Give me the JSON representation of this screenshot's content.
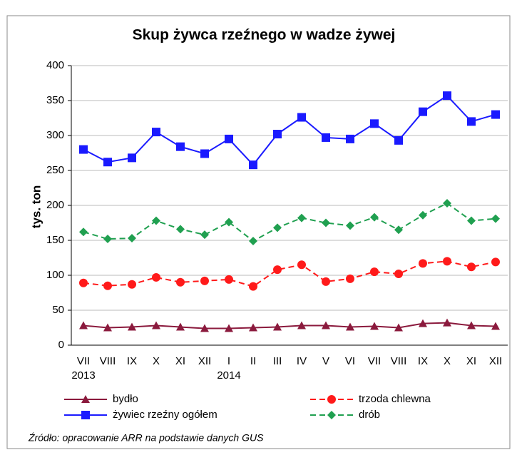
{
  "chart_data": {
    "type": "line",
    "title": "Skup żywca rzeźnego w wadze żywej",
    "y_label": "tys. ton",
    "categories": [
      "VII",
      "VIII",
      "IX",
      "X",
      "XI",
      "XII",
      "I",
      "II",
      "III",
      "IV",
      "V",
      "VI",
      "VII",
      "VIII",
      "IX",
      "X",
      "XI",
      "XII"
    ],
    "year_labels": [
      "2013",
      null,
      null,
      null,
      null,
      null,
      "2014",
      null,
      null,
      null,
      null,
      null,
      null,
      null,
      null,
      null,
      null,
      null
    ],
    "series": [
      {
        "name": "bydło",
        "color": "#8b1a3d",
        "marker": "triangle",
        "dashed": false,
        "values": [
          28,
          25,
          26,
          28,
          26,
          24,
          24,
          25,
          26,
          28,
          28,
          26,
          27,
          25,
          31,
          32,
          28,
          27
        ]
      },
      {
        "name": "żywiec rzeźny ogółem",
        "color": "#1a1aff",
        "marker": "square",
        "dashed": false,
        "values": [
          280,
          262,
          268,
          305,
          284,
          274,
          295,
          258,
          302,
          326,
          297,
          295,
          317,
          293,
          334,
          357,
          320,
          330
        ]
      },
      {
        "name": "trzoda chlewna",
        "color": "#ff1a1a",
        "marker": "circle",
        "dashed": true,
        "values": [
          89,
          85,
          87,
          97,
          90,
          92,
          94,
          84,
          108,
          115,
          91,
          95,
          105,
          102,
          117,
          120,
          112,
          119
        ]
      },
      {
        "name": "drób",
        "color": "#20a050",
        "marker": "diamond",
        "dashed": true,
        "values": [
          162,
          152,
          153,
          178,
          166,
          158,
          176,
          149,
          168,
          182,
          175,
          171,
          183,
          165,
          186,
          203,
          178,
          181
        ]
      }
    ],
    "ylim": [
      0,
      400
    ],
    "yticks": [
      0,
      50,
      100,
      150,
      200,
      250,
      300,
      350,
      400
    ],
    "grid": true,
    "source": "Źródło: opracowanie ARR na podstawie danych GUS"
  }
}
